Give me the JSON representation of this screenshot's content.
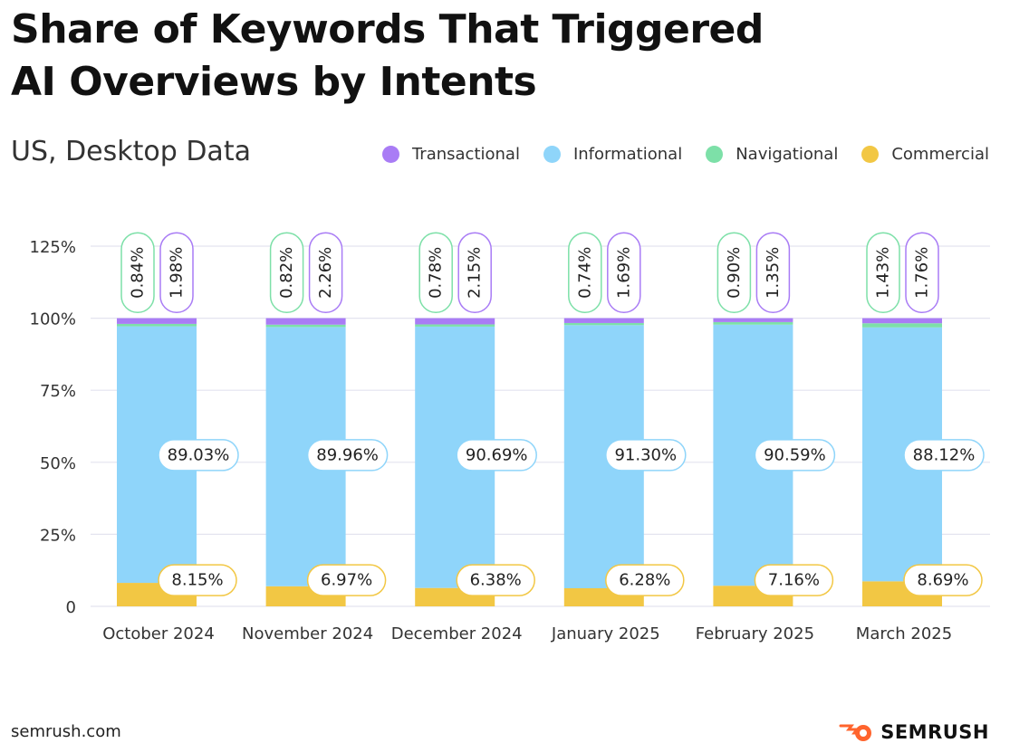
{
  "title_lines": [
    "Share of Keywords That Triggered",
    "AI Overviews by Intents"
  ],
  "subtitle": "US, Desktop Data",
  "legend": [
    {
      "label": "Transactional",
      "color": "#a97cf5"
    },
    {
      "label": "Informational",
      "color": "#8fd5fa"
    },
    {
      "label": "Navigational",
      "color": "#7de0a8"
    },
    {
      "label": "Commercial",
      "color": "#f2c744"
    }
  ],
  "chart_data": {
    "type": "bar",
    "stacked": true,
    "title": "Share of Keywords That Triggered AI Overviews by Intents",
    "subtitle": "US, Desktop Data",
    "categories": [
      "October 2024",
      "November 2024",
      "December 2024",
      "January 2025",
      "February 2025",
      "March 2025"
    ],
    "series": [
      {
        "name": "Commercial",
        "color": "#f2c744",
        "values": [
          8.15,
          6.97,
          6.38,
          6.28,
          7.16,
          8.69
        ],
        "labels": [
          "8.15%",
          "6.97%",
          "6.38%",
          "6.28%",
          "7.16%",
          "8.69%"
        ]
      },
      {
        "name": "Informational",
        "color": "#8fd5fa",
        "values": [
          89.03,
          89.96,
          90.69,
          91.3,
          90.59,
          88.12
        ],
        "labels": [
          "89.03%",
          "89.96%",
          "90.69%",
          "91.30%",
          "90.59%",
          "88.12%"
        ]
      },
      {
        "name": "Navigational",
        "color": "#7de0a8",
        "values": [
          0.84,
          0.82,
          0.78,
          0.74,
          0.9,
          1.43
        ],
        "labels": [
          "0.84%",
          "0.82%",
          "0.78%",
          "0.74%",
          "0.90%",
          "1.43%"
        ]
      },
      {
        "name": "Transactional",
        "color": "#a97cf5",
        "values": [
          1.98,
          2.26,
          2.15,
          1.69,
          1.35,
          1.76
        ],
        "labels": [
          "1.98%",
          "2.26%",
          "2.15%",
          "1.69%",
          "1.35%",
          "1.76%"
        ]
      }
    ],
    "ylim": [
      0,
      125
    ],
    "yticks": [
      0,
      25,
      50,
      75,
      100,
      125
    ],
    "ytick_labels": [
      "0",
      "25%",
      "50%",
      "75%",
      "100%",
      "125%"
    ],
    "grid": true,
    "legend_position": "top-right"
  },
  "footer": {
    "source": "semrush.com",
    "brand": "SEMRUSH"
  },
  "colors": {
    "grid": "#e4e4ef",
    "text": "#333333",
    "background": "#ffffff"
  }
}
